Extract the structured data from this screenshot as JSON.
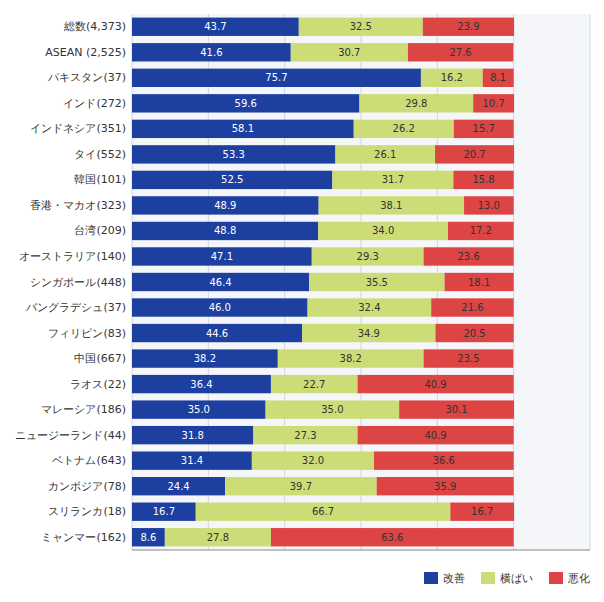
{
  "chart_data": {
    "type": "bar",
    "orientation": "horizontal",
    "stacked": true,
    "data_labels": true,
    "grid": true,
    "legend": "bottom-right",
    "tick_labels": "y",
    "categories": [
      "総数(4,373)",
      "ASEAN (2,525)",
      "パキスタン(37)",
      "インド(272)",
      "インドネシア(351)",
      "タイ(552)",
      "韓国(101)",
      "香港・マカオ(323)",
      "台湾(209)",
      "オーストラリア(140)",
      "シンガポール(448)",
      "バングラデシュ(37)",
      "フィリピン(83)",
      "中国(667)",
      "ラオス(22)",
      "マレーシア(186)",
      "ニュージーランド(44)",
      "ベトナム(643)",
      "カンボジア(78)",
      "スリランカ(18)",
      "ミャンマー(162)"
    ],
    "series": [
      {
        "name": "改善",
        "color": "#1c3fa0",
        "values": [
          43.7,
          41.6,
          75.7,
          59.6,
          58.1,
          53.3,
          52.5,
          48.9,
          48.8,
          47.1,
          46.4,
          46.0,
          44.6,
          38.2,
          36.4,
          35.0,
          31.8,
          31.4,
          24.4,
          16.7,
          8.6
        ],
        "value_labels": [
          "43.7",
          "41.6",
          "75.7",
          "59.6",
          "58.1",
          "53.3",
          "52.5",
          "48.9",
          "48.8",
          "47.1",
          "46.4",
          "46.0",
          "44.6",
          "38.2",
          "36.4",
          "35.0",
          "31.8",
          "31.4",
          "24.4",
          "16.7",
          "8.6"
        ]
      },
      {
        "name": "横ばい",
        "color": "#ccdd77",
        "values": [
          32.5,
          30.7,
          16.2,
          29.8,
          26.2,
          26.1,
          31.7,
          38.1,
          34.0,
          29.3,
          35.5,
          32.4,
          34.9,
          38.2,
          22.7,
          35.0,
          27.3,
          32.0,
          39.7,
          66.7,
          27.8
        ],
        "value_labels": [
          "32.5",
          "30.7",
          "16.2",
          "29.8",
          "26.2",
          "26.1",
          "31.7",
          "38.1",
          "34.0",
          "29.3",
          "35.5",
          "32.4",
          "34.9",
          "38.2",
          "22.7",
          "35.0",
          "27.3",
          "32.0",
          "39.7",
          "66.7",
          "27.8"
        ]
      },
      {
        "name": "悪化",
        "color": "#dd4444",
        "values": [
          23.9,
          27.6,
          8.1,
          10.7,
          15.7,
          20.7,
          15.8,
          13.0,
          17.2,
          23.6,
          18.1,
          21.6,
          20.5,
          23.5,
          40.9,
          30.1,
          40.9,
          36.6,
          35.9,
          16.7,
          63.6
        ],
        "value_labels": [
          "23.9",
          "27.6",
          "8.1",
          "10.7",
          "15.7",
          "20.7",
          "15.8",
          "13.0",
          "17.2",
          "23.6",
          "18.1",
          "21.6",
          "20.5",
          "23.5",
          "40.9",
          "30.1",
          "40.9",
          "36.6",
          "35.9",
          "16.7",
          "63.6"
        ]
      }
    ],
    "xlim": [
      0,
      120
    ],
    "xticks": [
      0,
      20,
      40,
      60,
      80,
      100,
      120
    ]
  }
}
